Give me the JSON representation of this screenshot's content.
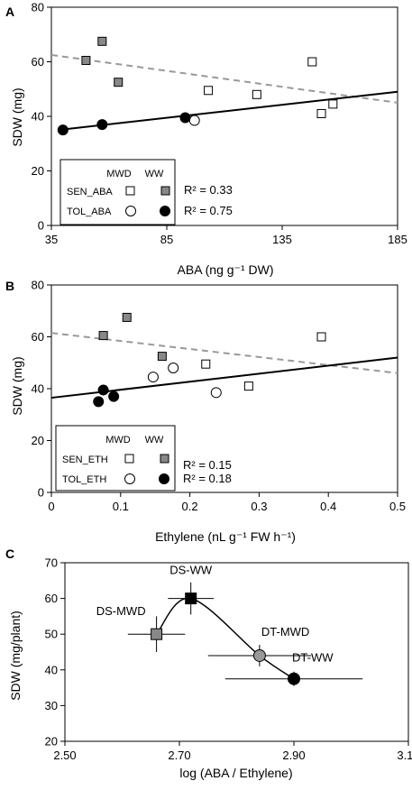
{
  "chart_data": [
    {
      "panel": "A",
      "type": "scatter",
      "xlabel": "ABA (ng g⁻¹ DW)",
      "ylabel": "SDW (mg)",
      "xlim": [
        35,
        185
      ],
      "ylim": [
        0,
        80
      ],
      "xticks": [
        "35",
        "85",
        "135",
        "185"
      ],
      "yticks": [
        "0",
        "20",
        "40",
        "60",
        "80"
      ],
      "legend": {
        "header_mwd": "MWD",
        "header_ww": "WW",
        "row1": "SEN_ABA",
        "row2": "TOL_ABA",
        "placement": "bottom-left"
      },
      "r2": [
        "R² = 0.33",
        "R² = 0.75"
      ],
      "series": [
        {
          "name": "SEN_ABA MWD",
          "marker": "square-open",
          "points": [
            [
              103,
              49.5
            ],
            [
              124,
              48
            ],
            [
              148,
              60
            ],
            [
              152,
              41
            ],
            [
              157,
              44.5
            ]
          ]
        },
        {
          "name": "SEN_ABA WW",
          "marker": "square-gray",
          "points": [
            [
              50,
              60.5
            ],
            [
              57,
              67.5
            ],
            [
              64,
              52.5
            ]
          ]
        },
        {
          "name": "TOL_ABA MWD",
          "marker": "circle-open",
          "points": [
            [
              97,
              38.5
            ]
          ]
        },
        {
          "name": "TOL_ABA WW",
          "marker": "circle-black",
          "points": [
            [
              40,
              35
            ],
            [
              57,
              37
            ],
            [
              93,
              39.5
            ]
          ]
        }
      ],
      "fits": [
        {
          "style": "dashed-gray",
          "x": [
            35,
            185
          ],
          "y": [
            62.5,
            45
          ]
        },
        {
          "style": "solid-black",
          "x": [
            38,
            185
          ],
          "y": [
            35,
            49
          ]
        }
      ]
    },
    {
      "panel": "B",
      "type": "scatter",
      "xlabel": "Ethylene (nL g⁻¹ FW h⁻¹)",
      "ylabel": "SDW (mg)",
      "xlim": [
        0,
        0.5
      ],
      "ylim": [
        0,
        80
      ],
      "xticks": [
        "0",
        "0.1",
        "0.2",
        "0.3",
        "0.4",
        "0.5"
      ],
      "yticks": [
        "0",
        "20",
        "40",
        "60",
        "80"
      ],
      "legend": {
        "header_mwd": "MWD",
        "header_ww": "WW",
        "row1": "SEN_ETH",
        "row2": "TOL_ETH",
        "placement": "bottom-left"
      },
      "r2": [
        "R² = 0.15",
        "R² = 0.18"
      ],
      "series": [
        {
          "name": "SEN_ETH MWD",
          "marker": "square-open",
          "points": [
            [
              0.223,
              49.5
            ],
            [
              0.285,
              41
            ],
            [
              0.39,
              60
            ]
          ]
        },
        {
          "name": "SEN_ETH WW",
          "marker": "square-gray",
          "points": [
            [
              0.075,
              60.5
            ],
            [
              0.109,
              67.5
            ],
            [
              0.16,
              52.5
            ]
          ]
        },
        {
          "name": "TOL_ETH MWD",
          "marker": "circle-open",
          "points": [
            [
              0.147,
              44.5
            ],
            [
              0.176,
              48
            ],
            [
              0.238,
              38.5
            ]
          ]
        },
        {
          "name": "TOL_ETH WW",
          "marker": "circle-black",
          "points": [
            [
              0.068,
              35
            ],
            [
              0.075,
              39.5
            ],
            [
              0.09,
              37
            ]
          ]
        }
      ],
      "fits": [
        {
          "style": "dashed-gray",
          "x": [
            0,
            0.5
          ],
          "y": [
            61.5,
            46
          ]
        },
        {
          "style": "solid-black",
          "x": [
            0,
            0.5
          ],
          "y": [
            36.5,
            52
          ]
        }
      ]
    },
    {
      "panel": "C",
      "type": "scatter",
      "xlabel": "log (ABA / Ethylene)",
      "ylabel": "SDW (mg/plant)",
      "xlim": [
        2.5,
        3.1
      ],
      "ylim": [
        20,
        70
      ],
      "xticks": [
        "2.50",
        "2.70",
        "2.90",
        "3.10"
      ],
      "yticks": [
        "20",
        "30",
        "40",
        "50",
        "60",
        "70"
      ],
      "points": [
        {
          "label": "DS-MWD",
          "x": 2.66,
          "y": 50,
          "xerr": 0.05,
          "yerr": 5,
          "marker": "square-gray"
        },
        {
          "label": "DS-WW",
          "x": 2.72,
          "y": 60,
          "xerr": 0.04,
          "yerr": 4.5,
          "marker": "square-black"
        },
        {
          "label": "DT-MWD",
          "x": 2.84,
          "y": 44,
          "xerr": 0.09,
          "yerr": 3,
          "marker": "circle-gray"
        },
        {
          "label": "DT-WW",
          "x": 2.9,
          "y": 37.5,
          "xerr": 0.12,
          "yerr": 2,
          "marker": "circle-black"
        }
      ]
    }
  ]
}
